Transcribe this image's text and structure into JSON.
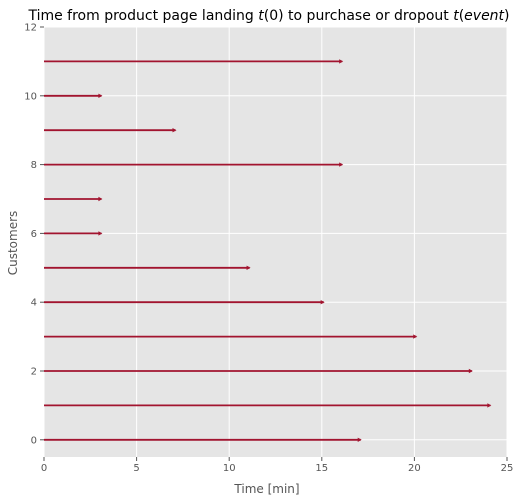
{
  "chart_data": {
    "type": "bar",
    "orientation": "horizontal-lines",
    "title_prefix": "Time from product page landing ",
    "title_t0": "t",
    "title_p0": "(0) to purchase or dropout ",
    "title_t1": "t",
    "title_p1": "(",
    "title_event": "event",
    "title_p2": ")",
    "xlabel": "Time [min]",
    "ylabel": "Customers",
    "xlim": [
      0,
      25
    ],
    "ylim": [
      -0.5,
      12
    ],
    "xticks": [
      0,
      5,
      10,
      15,
      20,
      25
    ],
    "yticks": [
      0,
      2,
      4,
      6,
      8,
      10,
      12
    ],
    "grid": true,
    "line_color": "#a2142f",
    "background_color": "#e5e5e5",
    "customers": [
      0,
      1,
      2,
      3,
      4,
      5,
      6,
      7,
      8,
      9,
      10,
      11
    ],
    "start": [
      0,
      0,
      0,
      0,
      0,
      0,
      0,
      0,
      0,
      0,
      0,
      0
    ],
    "end": [
      17.1,
      24.1,
      23.1,
      20.1,
      15.1,
      11.1,
      3.1,
      3.1,
      16.1,
      7.1,
      3.1,
      16.1
    ]
  }
}
